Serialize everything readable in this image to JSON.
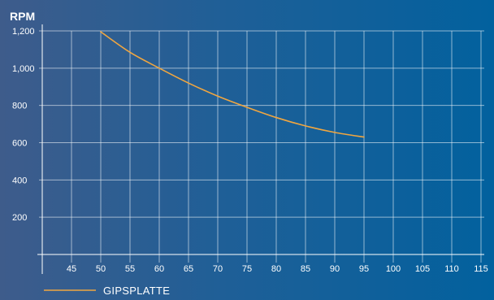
{
  "chart_data": {
    "type": "line",
    "title": "",
    "xlabel": "",
    "ylabel": "RPM",
    "xlim": [
      40,
      115
    ],
    "ylim": [
      0,
      1200
    ],
    "x_ticks": [
      45,
      50,
      55,
      60,
      65,
      70,
      75,
      80,
      85,
      90,
      95,
      100,
      105,
      110,
      115
    ],
    "x_tick_labels": [
      "45",
      "50",
      "55",
      "60",
      "65",
      "70",
      "75",
      "80",
      "85",
      "90",
      "95",
      "100",
      "105",
      "110",
      "115"
    ],
    "y_ticks": [
      200,
      400,
      600,
      800,
      1000,
      1200
    ],
    "y_tick_labels": [
      "200",
      "400",
      "600",
      "800",
      "1,000",
      "1,200"
    ],
    "grid": true,
    "legend_position": "bottom-left",
    "colors": {
      "series": "#f0a640",
      "grid": "#ffffff",
      "text": "#ffffff"
    },
    "series": [
      {
        "name": "GIPSPLATTE",
        "x": [
          50,
          55,
          60,
          65,
          70,
          75,
          80,
          85,
          90,
          95
        ],
        "y": [
          1195,
          1085,
          1000,
          920,
          850,
          790,
          735,
          690,
          655,
          630
        ]
      }
    ]
  }
}
